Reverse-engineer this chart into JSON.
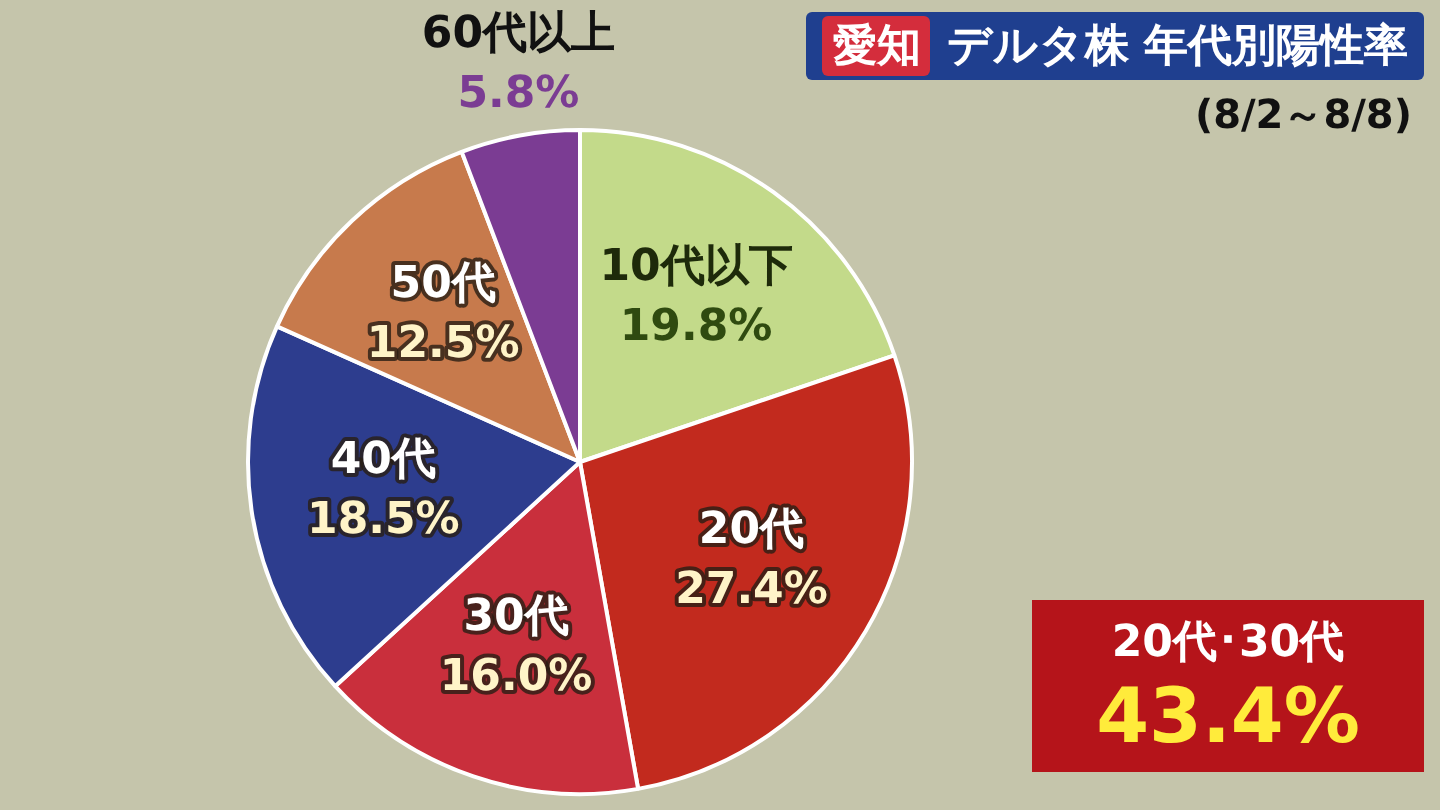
{
  "chart_data": {
    "type": "pie",
    "title": "愛知 デルタ株 年代別陽性率",
    "subtitle": "(8/2～8/8)",
    "categories": [
      "10代以下",
      "20代",
      "30代",
      "40代",
      "50代",
      "60代以上"
    ],
    "values": [
      19.8,
      27.4,
      16.0,
      18.5,
      12.5,
      5.8
    ],
    "colors": [
      "#c3da8a",
      "#c22a1e",
      "#c92f3c",
      "#2d3d8e",
      "#c77a4c",
      "#7b3c93"
    ],
    "value_labels": [
      "19.8%",
      "27.4%",
      "16.0%",
      "18.5%",
      "12.5%",
      "5.8%"
    ],
    "annotations": [
      "20代･30代",
      "43.4%"
    ],
    "legend": false
  }
}
